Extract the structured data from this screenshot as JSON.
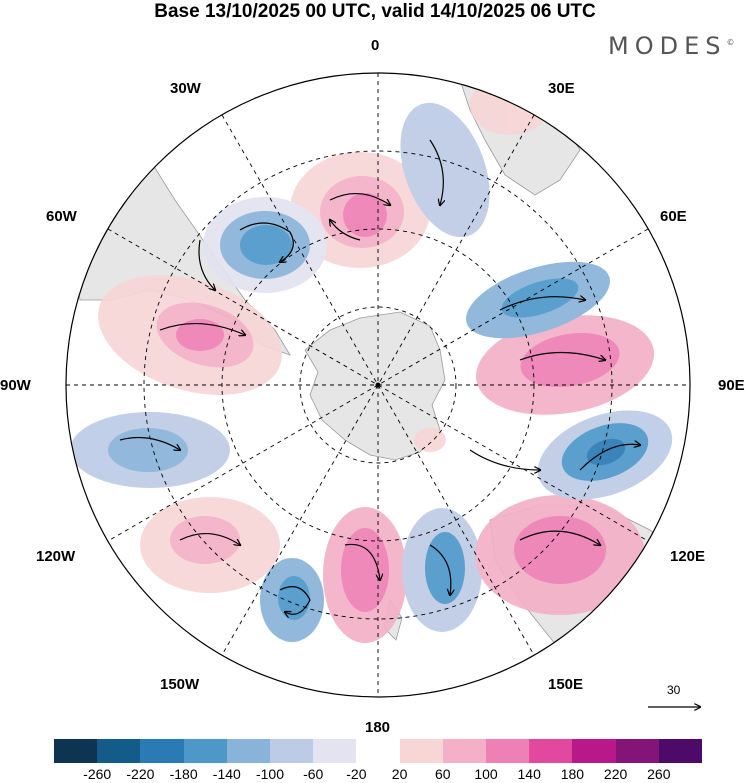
{
  "title": "Base 13/10/2025 00 UTC, valid 14/10/2025 06 UTC",
  "brand": "MODES",
  "brand_mark": "©",
  "meridians": {
    "m0": "0",
    "m30e": "30E",
    "m60e": "60E",
    "m90e": "90E",
    "m120e": "120E",
    "m150e": "150E",
    "m180": "180",
    "m150w": "150W",
    "m120w": "120W",
    "m90w": "90W",
    "m60w": "60W",
    "m30w": "30W"
  },
  "reference_vector": "30",
  "colorbar": {
    "ticks": [
      "-260",
      "-220",
      "-180",
      "-140",
      "-100",
      "-60",
      "-20",
      "20",
      "60",
      "100",
      "140",
      "180",
      "220",
      "260"
    ],
    "colors": [
      "#0d3450",
      "#135c8a",
      "#2a7ab5",
      "#4d97c9",
      "#89b4da",
      "#bdcbe6",
      "#e3e3f1",
      "#ffffff",
      "#f8d6d6",
      "#f4b0c6",
      "#ee80b5",
      "#e3489f",
      "#b8188a",
      "#851478",
      "#4d0a68"
    ]
  },
  "colors": {
    "land": "#e6e6e6",
    "coast": "#9a9a9a",
    "grid": "#000000"
  }
}
